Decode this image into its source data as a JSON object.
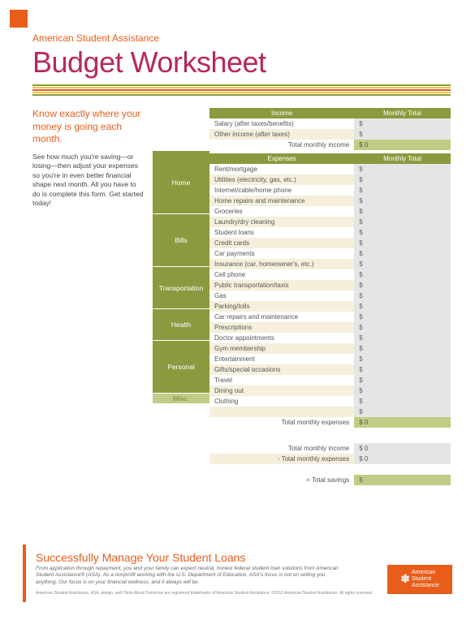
{
  "colors": {
    "orange": "#e85d1a",
    "magenta": "#b8285a",
    "olive": "#8a9a3e",
    "olive_light": "#c0cd85",
    "cream": "#f5efdb",
    "grey_input": "#e5e5e5"
  },
  "header": {
    "org": "American Student Assistance",
    "title": "Budget Worksheet"
  },
  "intro": {
    "lead": "Know exactly where your money is going each month.",
    "body": "See how much you're saving—or losing—then adjust your expenses so you're in even better financial shape next month. All you have to do is complete this form. Get started today!"
  },
  "income": {
    "header_left": "Income",
    "header_right": "Monthly Total",
    "rows": [
      {
        "label": "Salary (after taxes/benefits)",
        "value": "$"
      },
      {
        "label": "Other income (after taxes)",
        "value": "$"
      }
    ],
    "total_label": "Total monthly income",
    "total_value": "$  0"
  },
  "expenses": {
    "header_left": "Expenses",
    "header_right": "Monthly Total",
    "categories": [
      {
        "name": "Home",
        "rows": [
          {
            "label": "Rent/mortgage",
            "value": "$"
          },
          {
            "label": "Utilities (electricity, gas, etc.)",
            "value": "$"
          },
          {
            "label": "Internet/cable/home phone",
            "value": "$"
          },
          {
            "label": "Home repairs and maintenance",
            "value": "$"
          },
          {
            "label": "Groceries",
            "value": "$"
          },
          {
            "label": "Laundry/dry cleaning",
            "value": "$"
          }
        ]
      },
      {
        "name": "Bills",
        "rows": [
          {
            "label": "Student loans",
            "value": "$"
          },
          {
            "label": "Credit cards",
            "value": "$"
          },
          {
            "label": "Car payments",
            "value": "$"
          },
          {
            "label": "Insurance (car, homeowner's, etc.)",
            "value": "$"
          },
          {
            "label": "Cell phone",
            "value": "$"
          }
        ]
      },
      {
        "name": "Transportation",
        "rows": [
          {
            "label": "Public transportation/taxis",
            "value": "$"
          },
          {
            "label": "Gas",
            "value": "$"
          },
          {
            "label": "Parking/tolls",
            "value": "$"
          },
          {
            "label": "Car repairs and maintenance",
            "value": "$"
          }
        ]
      },
      {
        "name": "Health",
        "rows": [
          {
            "label": "Prescriptions",
            "value": "$"
          },
          {
            "label": "Doctor appointments",
            "value": "$"
          },
          {
            "label": "Gym membership",
            "value": "$"
          }
        ]
      },
      {
        "name": "Personal",
        "rows": [
          {
            "label": "Entertainment",
            "value": "$"
          },
          {
            "label": "Gifts/special occasions",
            "value": "$"
          },
          {
            "label": "Travel",
            "value": "$"
          },
          {
            "label": "Dining out",
            "value": "$"
          },
          {
            "label": "Clothing",
            "value": "$"
          }
        ]
      },
      {
        "name": "Misc.",
        "rows": [
          {
            "label": "",
            "value": "$"
          }
        ],
        "light": true
      }
    ],
    "total_label": "Total monthly expenses",
    "total_value": "$  0"
  },
  "summary": {
    "rows": [
      {
        "label": "Total monthly income",
        "value": "$  0"
      },
      {
        "label": "- Total monthly expenses",
        "value": "$  0"
      }
    ],
    "final_label": "= Total savings",
    "final_value": "$"
  },
  "footer": {
    "title": "Successfully Manage Your Student Loans",
    "text": "From application through repayment, you and your family can expect neutral, honest federal student loan solutions from American Student Assistance® (ASA). As a nonprofit working with the U.S. Department of Education, ASA's focus is not on selling you anything. Our focus is on your financial wellness, and it always will be.",
    "legal": "American Student Assistance, ASA, design, and Think About Tomorrow are registered trademarks of American Student Assistance.\n©2012 American Student Assistance. All rights reserved.",
    "logo_top": "American",
    "logo_mid": "Student",
    "logo_bot": "Assistance"
  }
}
